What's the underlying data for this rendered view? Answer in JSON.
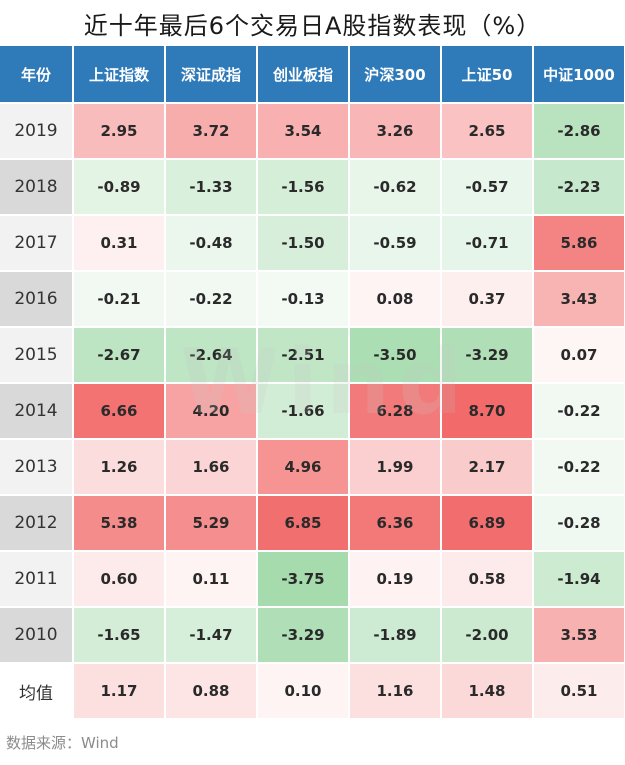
{
  "chart_data": {
    "type": "table",
    "title": "近十年最后6个交易日A股指数表现（%）",
    "columns": [
      "年份",
      "上证指数",
      "深证成指",
      "创业板指",
      "沪深300",
      "上证50",
      "中证1000"
    ],
    "rows": [
      {
        "label": "2019",
        "values": [
          2.95,
          3.72,
          3.54,
          3.26,
          2.65,
          -2.86
        ],
        "texts": [
          "2.95",
          "3.72",
          "3.54",
          "3.26",
          "2.65",
          "-2.86"
        ]
      },
      {
        "label": "2018",
        "values": [
          -0.89,
          -1.33,
          -1.56,
          -0.62,
          -0.57,
          -2.23
        ],
        "texts": [
          "-0.89",
          "-1.33",
          "-1.56",
          "-0.62",
          "-0.57",
          "-2.23"
        ]
      },
      {
        "label": "2017",
        "values": [
          0.31,
          -0.48,
          -1.5,
          -0.59,
          -0.71,
          5.86
        ],
        "texts": [
          "0.31",
          "-0.48",
          "-1.50",
          "-0.59",
          "-0.71",
          "5.86"
        ]
      },
      {
        "label": "2016",
        "values": [
          -0.21,
          -0.22,
          -0.13,
          0.08,
          0.37,
          3.43
        ],
        "texts": [
          "-0.21",
          "-0.22",
          "-0.13",
          "0.08",
          "0.37",
          "3.43"
        ]
      },
      {
        "label": "2015",
        "values": [
          -2.67,
          -2.64,
          -2.51,
          -3.5,
          -3.29,
          0.07
        ],
        "texts": [
          "-2.67",
          "-2.64",
          "-2.51",
          "-3.50",
          "-3.29",
          "0.07"
        ]
      },
      {
        "label": "2014",
        "values": [
          6.66,
          4.2,
          -1.66,
          6.28,
          8.7,
          -0.22
        ],
        "texts": [
          "6.66",
          "4.20",
          "-1.66",
          "6.28",
          "8.70",
          "-0.22"
        ]
      },
      {
        "label": "2013",
        "values": [
          1.26,
          1.66,
          4.96,
          1.99,
          2.17,
          -0.22
        ],
        "texts": [
          "1.26",
          "1.66",
          "4.96",
          "1.99",
          "2.17",
          "-0.22"
        ]
      },
      {
        "label": "2012",
        "values": [
          5.38,
          5.29,
          6.85,
          6.36,
          6.89,
          -0.28
        ],
        "texts": [
          "5.38",
          "5.29",
          "6.85",
          "6.36",
          "6.89",
          "-0.28"
        ]
      },
      {
        "label": "2011",
        "values": [
          0.6,
          0.11,
          -3.75,
          0.19,
          0.58,
          -1.94
        ],
        "texts": [
          "0.60",
          "0.11",
          "-3.75",
          "0.19",
          "0.58",
          "-1.94"
        ]
      },
      {
        "label": "2010",
        "values": [
          -1.65,
          -1.47,
          -3.29,
          -1.89,
          -2.0,
          3.53
        ],
        "texts": [
          "-1.65",
          "-1.47",
          "-3.29",
          "-1.89",
          "-2.00",
          "3.53"
        ]
      },
      {
        "label": "均值",
        "values": [
          1.17,
          0.88,
          0.1,
          1.16,
          1.48,
          0.51
        ],
        "texts": [
          "1.17",
          "0.88",
          "0.10",
          "1.16",
          "1.48",
          "0.51"
        ]
      }
    ],
    "color_scale": {
      "positive": "#f26a6a",
      "negative": "#5fbf6e",
      "neutral": "#ffffff",
      "max_abs": 8.7
    }
  },
  "footer": "数据来源：Wind",
  "watermark": "Wind",
  "colors": {
    "header_bg": "#2f7ab8",
    "year_odd_bg": "#f2f2f2",
    "year_even_bg": "#d9d9d9"
  }
}
